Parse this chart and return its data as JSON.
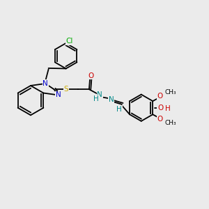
{
  "background_color": "#ebebeb",
  "bond_color": "#000000",
  "colors": {
    "Cl": "#00aa00",
    "S": "#ccaa00",
    "O": "#cc0000",
    "N": "#0000cc",
    "NH": "#008888",
    "H": "#008888"
  },
  "fs": 7.5
}
